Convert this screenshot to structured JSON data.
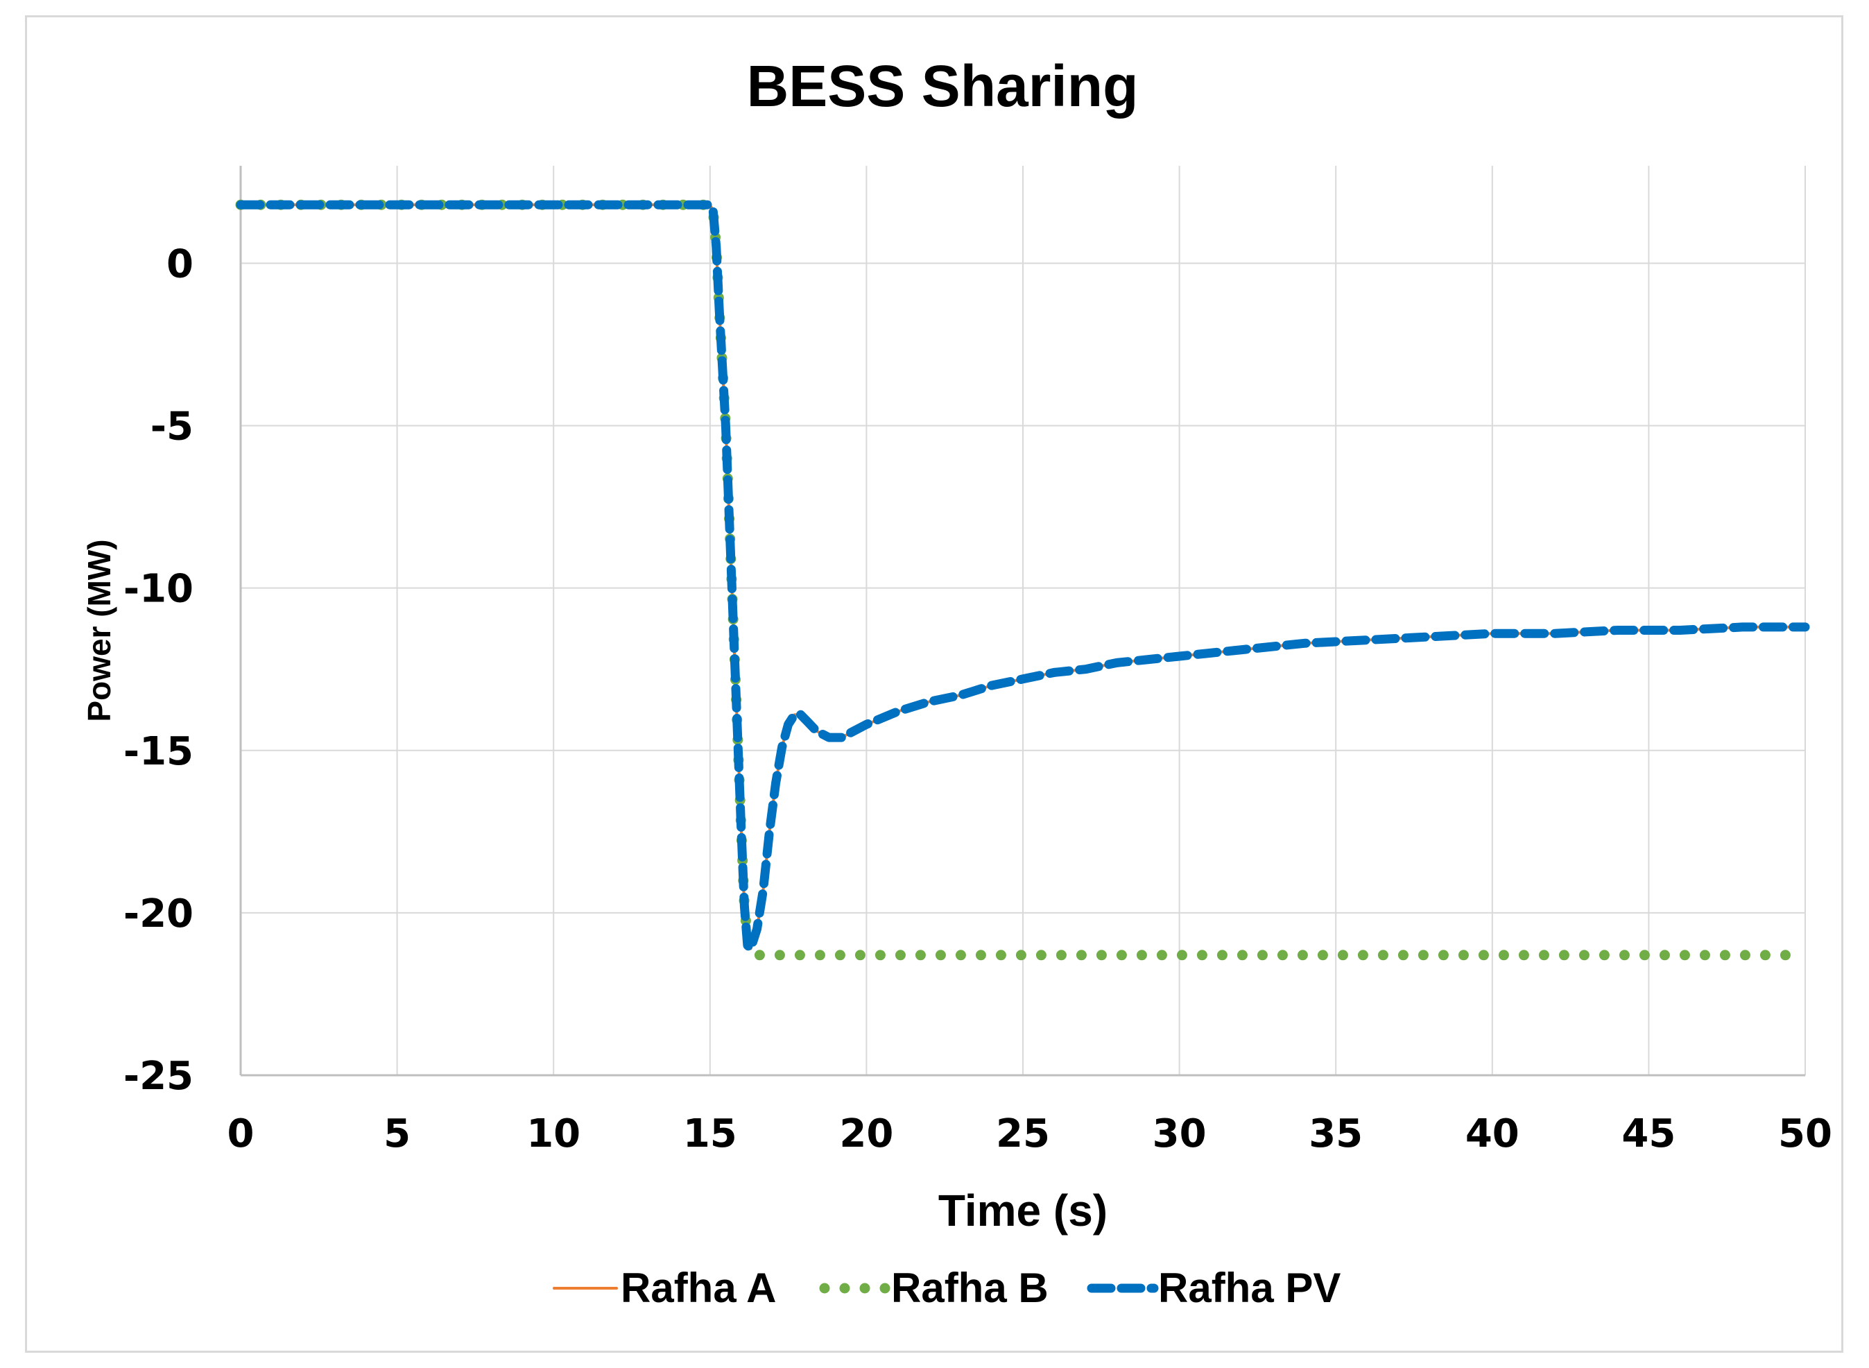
{
  "chart_data": {
    "type": "line",
    "title": "BESS Sharing",
    "xlabel": "Time (s)",
    "ylabel": "Power (MW)",
    "xlim": [
      0,
      50
    ],
    "ylim": [
      -25,
      3
    ],
    "x_ticks": [
      "0",
      "5",
      "10",
      "15",
      "20",
      "25",
      "30",
      "35",
      "40",
      "45",
      "50"
    ],
    "y_ticks": [
      "0",
      "-5",
      "-10",
      "-15",
      "-20",
      "-25"
    ],
    "y_tick_values": [
      0,
      -5,
      -10,
      -15,
      -20,
      -25
    ],
    "x_tick_values": [
      0,
      5,
      10,
      15,
      20,
      25,
      30,
      35,
      40,
      45,
      50
    ],
    "grid": true,
    "legend_position": "bottom",
    "series": [
      {
        "name": "Rafha A",
        "color": "#ED7D31",
        "style": "solid",
        "x": [
          0,
          15.0,
          15.1,
          15.2,
          15.3,
          15.5,
          15.6,
          15.7,
          15.8,
          15.9,
          16.0,
          16.1,
          16.2,
          16.3,
          16.5,
          16.7,
          16.9,
          17.1,
          17.3,
          17.5,
          17.7,
          17.9,
          18.1,
          18.4,
          18.8,
          19.2,
          19.6,
          20.0,
          20.5,
          21.0,
          22,
          23,
          24,
          25,
          26,
          27,
          28,
          30,
          32,
          34,
          36,
          38,
          40,
          42,
          44,
          46,
          48,
          50
        ],
        "y": [
          1.8,
          1.8,
          1.6,
          0.5,
          -1.5,
          -5.0,
          -7.5,
          -10.0,
          -12.5,
          -15.0,
          -17.5,
          -19.8,
          -21.0,
          -21.1,
          -20.5,
          -19.3,
          -17.5,
          -16.0,
          -14.9,
          -14.2,
          -13.9,
          -13.9,
          -14.1,
          -14.4,
          -14.6,
          -14.6,
          -14.4,
          -14.2,
          -14.0,
          -13.8,
          -13.5,
          -13.3,
          -13.0,
          -12.8,
          -12.6,
          -12.5,
          -12.3,
          -12.1,
          -11.9,
          -11.7,
          -11.6,
          -11.5,
          -11.4,
          -11.4,
          -11.3,
          -11.3,
          -11.2,
          -11.2
        ]
      },
      {
        "name": "Rafha B",
        "color": "#70AD47",
        "style": "dotted",
        "x": [
          0,
          15.0,
          15.1,
          15.2,
          15.3,
          15.5,
          15.6,
          15.7,
          15.8,
          15.9,
          16.0,
          16.1,
          16.2,
          16.3,
          16.5,
          17,
          20,
          25,
          30,
          35,
          40,
          45,
          50
        ],
        "y": [
          1.8,
          1.8,
          1.6,
          0.5,
          -1.5,
          -5.0,
          -7.5,
          -10.0,
          -12.5,
          -15.0,
          -17.5,
          -19.8,
          -20.8,
          -21.1,
          -21.3,
          -21.3,
          -21.3,
          -21.3,
          -21.3,
          -21.3,
          -21.3,
          -21.3,
          -21.3
        ]
      },
      {
        "name": "Rafha PV",
        "color": "#0070C0",
        "style": "dashed",
        "x": [
          0,
          15.0,
          15.1,
          15.2,
          15.3,
          15.5,
          15.6,
          15.7,
          15.8,
          15.9,
          16.0,
          16.1,
          16.2,
          16.3,
          16.5,
          16.7,
          16.9,
          17.1,
          17.3,
          17.5,
          17.7,
          17.9,
          18.1,
          18.4,
          18.8,
          19.2,
          19.6,
          20.0,
          20.5,
          21.0,
          22,
          23,
          24,
          25,
          26,
          27,
          28,
          30,
          32,
          34,
          36,
          38,
          40,
          42,
          44,
          46,
          48,
          50
        ],
        "y": [
          1.8,
          1.8,
          1.6,
          0.5,
          -1.5,
          -5.0,
          -7.5,
          -10.0,
          -12.5,
          -15.0,
          -17.5,
          -19.8,
          -21.0,
          -21.1,
          -20.5,
          -19.3,
          -17.5,
          -16.0,
          -14.9,
          -14.2,
          -13.9,
          -13.9,
          -14.1,
          -14.4,
          -14.6,
          -14.6,
          -14.4,
          -14.2,
          -14.0,
          -13.8,
          -13.5,
          -13.3,
          -13.0,
          -12.8,
          -12.6,
          -12.5,
          -12.3,
          -12.1,
          -11.9,
          -11.7,
          -11.6,
          -11.5,
          -11.4,
          -11.4,
          -11.3,
          -11.3,
          -11.2,
          -11.2
        ]
      }
    ]
  }
}
